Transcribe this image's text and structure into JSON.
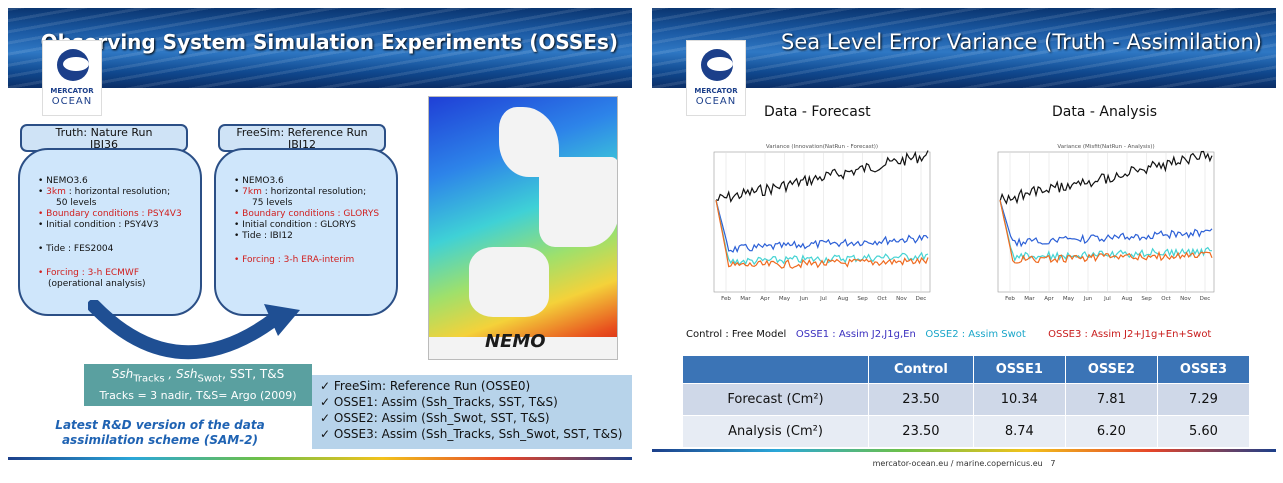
{
  "slide1": {
    "title": "Observing System Simulation Experiments (OSSEs)",
    "logo": {
      "line1": "MERCATOR",
      "line2": "OCEAN"
    },
    "truth_tab": {
      "line1": "Truth: Nature Run",
      "line2": "IBI36"
    },
    "freesim_tab": {
      "line1": "FreeSim: Reference Run",
      "line2": "IBI12"
    },
    "truth_bubble": {
      "nemo": "• NEMO3.6",
      "res_value": "3km",
      "res_text": " : horizontal resolution;",
      "levels": "50 levels",
      "boundary": "• Boundary conditions : PSY4V3",
      "initial": "• Initial condition : PSY4V3",
      "tide": "• Tide  : FES2004",
      "forcing": "• Forcing : 3-h ECMWF",
      "forcing_note": "(operational analysis)"
    },
    "freesim_bubble": {
      "nemo": "• NEMO3.6",
      "res_value": "7km",
      "res_text": " : horizontal resolution;",
      "levels": "75 levels",
      "boundary": "• Boundary conditions : GLORYS",
      "initial": "• Initial condition : GLORYS",
      "tide": "• Tide  : IBI12",
      "forcing": "• Forcing : 3-h ERA-interim"
    },
    "map_logo": "NEMO",
    "ssh_box": {
      "line1": "Ssh",
      "sub1": "Tracks",
      "sep": " ,  Ssh",
      "sub2": "Swot",
      "rest": ", SST, T&S",
      "line2": "Tracks = 3 nadir, T&S= Argo (2009)"
    },
    "osse_list": [
      "✓ FreeSim: Reference Run (OSSE0)",
      "✓ OSSE1: Assim (Ssh_Tracks, SST, T&S)",
      "✓ OSSE2: Assim (Ssh_Swot, SST, T&S)",
      "✓ OSSE3: Assim (Ssh_Tracks, Ssh_Swot, SST, T&S)"
    ],
    "latest_note": "Latest R&D version of the data assimilation scheme (SAM-2)"
  },
  "slide2": {
    "title": "Sea Level Error Variance (Truth - Assimilation)",
    "logo": {
      "line1": "MERCATOR",
      "line2": "OCEAN"
    },
    "panel_left": {
      "heading": "Data - Forecast",
      "plot_title": "Variance (Innovation(NatRun - Forecast))"
    },
    "panel_right": {
      "heading": "Data - Analysis",
      "plot_title": "Variance (Misfit(NatRun - Analysis))"
    },
    "legend": [
      {
        "text": "Control : Free Model",
        "color": "#111111"
      },
      {
        "text": "OSSE1 : Assim J2,J1g,En",
        "color": "#3a2fbf"
      },
      {
        "text": "OSSE2 : Assim  Swot",
        "color": "#1aa6c9"
      },
      {
        "text": "OSSE3 : Assim  J2+J1g+En+Swot",
        "color": "#c81b1b"
      }
    ],
    "series_colors": {
      "control": "#111111",
      "osse1": "#2b5fd6",
      "osse2": "#45d3d3",
      "osse3": "#ef6a1f"
    },
    "months": [
      "Feb",
      "Mar",
      "Apr",
      "May",
      "Jun",
      "Jul",
      "Aug",
      "Sep",
      "Oct",
      "Nov",
      "Dec"
    ],
    "table": {
      "headers": [
        "",
        "Control",
        "OSSE1",
        "OSSE2",
        "OSSE3"
      ],
      "rows": [
        {
          "label": "Forecast (Cm²)",
          "values": [
            "23.50",
            "10.34",
            "7.81",
            "7.29"
          ]
        },
        {
          "label": "Analysis (Cm²)",
          "values": [
            "23.50",
            "8.74",
            "6.20",
            "5.60"
          ]
        }
      ]
    },
    "footer": "mercator-ocean.eu / marine.copernicus.eu",
    "page_number": "7"
  }
}
